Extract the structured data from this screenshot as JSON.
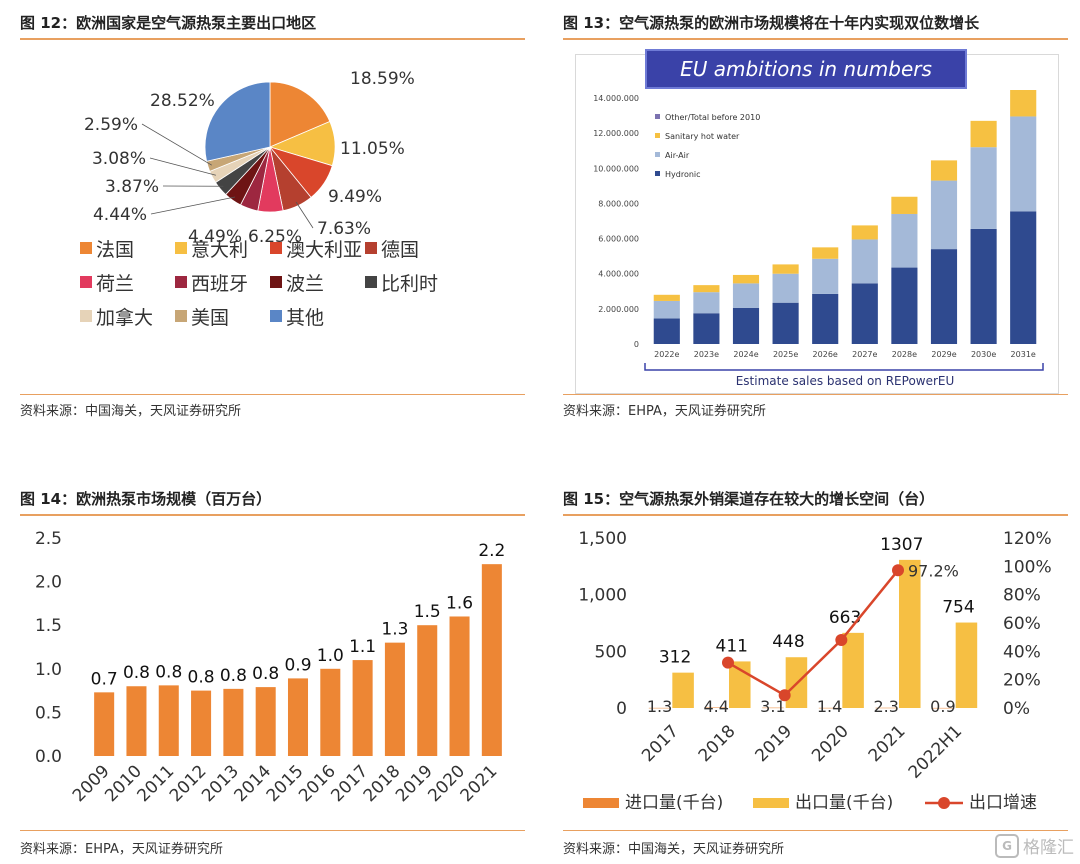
{
  "fig12": {
    "title": "图 12：欧洲国家是空气源热泵主要出口地区",
    "source": "资料来源：中国海关，天风证券研究所",
    "chart_data": {
      "type": "pie",
      "slices": [
        {
          "name": "法国",
          "value": 18.59,
          "label": "18.59%",
          "color": "#ed8634"
        },
        {
          "name": "意大利",
          "value": 11.05,
          "label": "11.05%",
          "color": "#f6bf43"
        },
        {
          "name": "澳大利亚",
          "value": 9.49,
          "label": "9.49%",
          "color": "#d9462b"
        },
        {
          "name": "德国",
          "value": 7.63,
          "label": "7.63%",
          "color": "#b5402f"
        },
        {
          "name": "荷兰",
          "value": 6.25,
          "label": "6.25%",
          "color": "#e23a5e"
        },
        {
          "name": "西班牙",
          "value": 4.49,
          "label": "4.49%",
          "color": "#9d2740"
        },
        {
          "name": "波兰",
          "value": 4.44,
          "label": "4.44%",
          "color": "#6e1414"
        },
        {
          "name": "比利时",
          "value": 3.87,
          "label": "3.87%",
          "color": "#444444"
        },
        {
          "name": "加拿大",
          "value": 3.08,
          "label": "3.08%",
          "color": "#e6d3b8"
        },
        {
          "name": "美国",
          "value": 2.59,
          "label": "2.59%",
          "color": "#c7a676"
        },
        {
          "name": "其他",
          "value": 28.52,
          "label": "28.52%",
          "color": "#5a86c6"
        }
      ]
    }
  },
  "fig13": {
    "title": "图 13：空气源热泵的欧洲市场规模将在十年内实现双位数增长",
    "source": "资料来源：EHPA，天风证券研究所",
    "banner": "EU ambitions in numbers",
    "note": "Estimate sales based on REPowerEU",
    "chart_data": {
      "type": "bar",
      "stacked": true,
      "categories": [
        "2022e",
        "2023e",
        "2024e",
        "2025e",
        "2026e",
        "2027e",
        "2028e",
        "2029e",
        "2030e",
        "2031e"
      ],
      "ylim": [
        0,
        14000000
      ],
      "yticks": [
        "0",
        "2.000.000",
        "4.000.000",
        "6.000.000",
        "8.000.000",
        "10.000.000",
        "12.000.000",
        "14.000.000"
      ],
      "legend": [
        "Other/Total before 2010",
        "Sanitary hot water",
        "Air-Air",
        "Hydronic"
      ],
      "series": [
        {
          "name": "Hydronic",
          "color": "#2f4a8f",
          "values": [
            1450000,
            1750000,
            2050000,
            2350000,
            2850000,
            3450000,
            4350000,
            5400000,
            6550000,
            7550000
          ]
        },
        {
          "name": "Air-Air",
          "color": "#a4b9d8",
          "values": [
            1000000,
            1200000,
            1400000,
            1650000,
            2000000,
            2500000,
            3050000,
            3900000,
            4650000,
            5400000
          ]
        },
        {
          "name": "Sanitary hot water",
          "color": "#f6c142",
          "values": [
            350000,
            400000,
            480000,
            530000,
            650000,
            800000,
            980000,
            1150000,
            1500000,
            1650000
          ]
        },
        {
          "name": "Other/Total before 2010",
          "color": "#7c72b0",
          "values": [
            0,
            0,
            0,
            0,
            0,
            0,
            0,
            0,
            0,
            0
          ]
        }
      ]
    }
  },
  "fig14": {
    "title": "图 14：欧洲热泵市场规模（百万台）",
    "source": "资料来源：EHPA，天风证券研究所",
    "chart_data": {
      "type": "bar",
      "categories": [
        "2009",
        "2010",
        "2011",
        "2012",
        "2013",
        "2014",
        "2015",
        "2016",
        "2017",
        "2018",
        "2019",
        "2020",
        "2021"
      ],
      "values": [
        0.73,
        0.8,
        0.81,
        0.75,
        0.77,
        0.79,
        0.89,
        1.0,
        1.1,
        1.3,
        1.5,
        1.6,
        2.2
      ],
      "labels": [
        "0.7",
        "0.8",
        "0.8",
        "0.8",
        "0.8",
        "0.8",
        "0.9",
        "1.0",
        "1.1",
        "1.3",
        "1.5",
        "1.6",
        "2.2"
      ],
      "ylim": [
        0,
        2.5
      ],
      "yticks": [
        "0.0",
        "0.5",
        "1.0",
        "1.5",
        "2.0",
        "2.5"
      ],
      "color": "#ed8634"
    }
  },
  "fig15": {
    "title": "图 15：空气源热泵外销渠道存在较大的增长空间（台）",
    "source": "资料来源：中国海关，天风证券研究所",
    "watermark": "格隆汇",
    "chart_data": {
      "type": "bar",
      "categories": [
        "2017",
        "2018",
        "2019",
        "2020",
        "2021",
        "2022H1"
      ],
      "ylim": [
        0,
        1500
      ],
      "yticks": [
        "0",
        "500",
        "1,000",
        "1,500"
      ],
      "y2lim": [
        0,
        1.2
      ],
      "y2ticks": [
        "0%",
        "20%",
        "40%",
        "60%",
        "80%",
        "100%",
        "120%"
      ],
      "series": [
        {
          "name": "进口量(千台)",
          "color": "#ed8634",
          "values": [
            1.3,
            4.4,
            3.1,
            1.4,
            2.3,
            0.9
          ],
          "labels": [
            "1.3",
            "4.4",
            "3.1",
            "1.4",
            "2.3",
            "0.9"
          ]
        },
        {
          "name": "出口量(千台)",
          "color": "#f6bf43",
          "values": [
            312,
            411,
            448,
            663,
            1307,
            754
          ],
          "labels": [
            "312",
            "411",
            "448",
            "663",
            "1307",
            "754"
          ]
        },
        {
          "name": "出口增速",
          "color": "#d9462b",
          "type": "line",
          "values": [
            null,
            0.32,
            0.09,
            0.48,
            0.972,
            null
          ],
          "labels": [
            "",
            "",
            "",
            "",
            "97.2%",
            ""
          ]
        }
      ]
    }
  }
}
